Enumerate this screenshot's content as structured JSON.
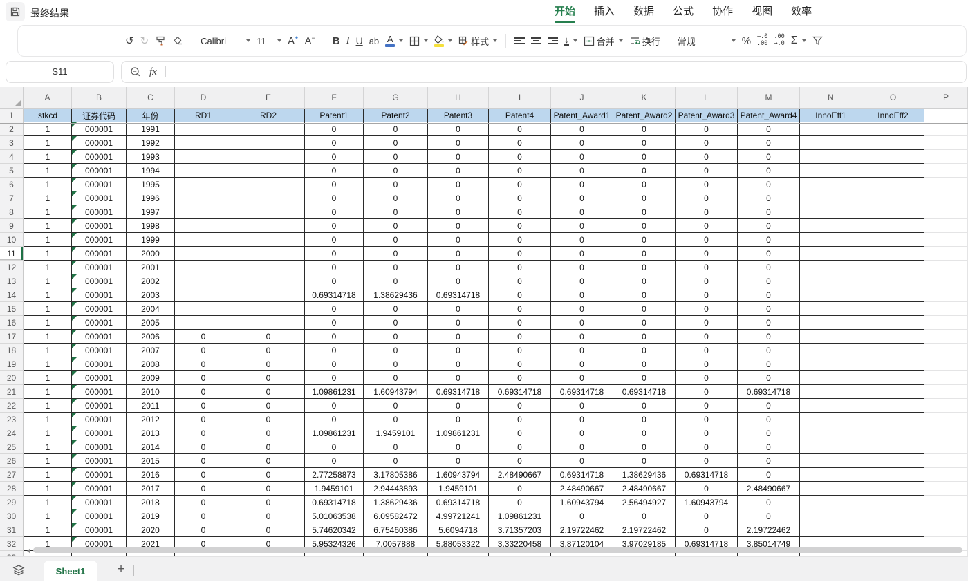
{
  "window": {
    "title": "最终结果"
  },
  "menu": {
    "tabs": [
      {
        "label": "开始",
        "active": true
      },
      {
        "label": "插入",
        "active": false
      },
      {
        "label": "数据",
        "active": false
      },
      {
        "label": "公式",
        "active": false
      },
      {
        "label": "协作",
        "active": false
      },
      {
        "label": "视图",
        "active": false
      },
      {
        "label": "效率",
        "active": false
      }
    ]
  },
  "toolbar": {
    "font_name": "Calibri",
    "font_size": "11",
    "bold_label": "B",
    "italic_label": "I",
    "underline_label": "U",
    "strike_label": "ab",
    "font_grow_label": "A",
    "font_shrink_label": "A",
    "font_color_label": "A",
    "style_label": "样式",
    "valign_glyph": "↓",
    "merge_label": "合并",
    "wrap_label": "换行",
    "number_format": "常规",
    "percent_label": "%",
    "dec_decrease_top": "←.0",
    "dec_decrease_bottom": ".00",
    "dec_increase_top": ".00",
    "dec_increase_bottom": "→.0",
    "sum_label": "Σ",
    "undo_glyph": "↺",
    "redo_glyph": "↻"
  },
  "formula_bar": {
    "name_box": "S11",
    "fx_label": "fx"
  },
  "grid": {
    "column_letters": [
      "A",
      "B",
      "C",
      "D",
      "E",
      "F",
      "G",
      "H",
      "I",
      "J",
      "K",
      "L",
      "M",
      "N",
      "O",
      "P"
    ],
    "selected_row": "11",
    "partial_row_num": "33",
    "header_row": {
      "row_num": "1",
      "cells": [
        "stkcd",
        "证券代码",
        "年份",
        "RD1",
        "RD2",
        "Patent1",
        "Patent2",
        "Patent3",
        "Patent4",
        "Patent_Award1",
        "Patent_Award2",
        "Patent_Award3",
        "Patent_Award4",
        "InnoEff1",
        "InnoEff2"
      ]
    },
    "rows": [
      {
        "row_num": "2",
        "cells": [
          "1",
          "000001",
          "1991",
          "",
          "",
          "0",
          "0",
          "0",
          "0",
          "0",
          "0",
          "0",
          "0",
          "",
          ""
        ]
      },
      {
        "row_num": "3",
        "cells": [
          "1",
          "000001",
          "1992",
          "",
          "",
          "0",
          "0",
          "0",
          "0",
          "0",
          "0",
          "0",
          "0",
          "",
          ""
        ]
      },
      {
        "row_num": "4",
        "cells": [
          "1",
          "000001",
          "1993",
          "",
          "",
          "0",
          "0",
          "0",
          "0",
          "0",
          "0",
          "0",
          "0",
          "",
          ""
        ]
      },
      {
        "row_num": "5",
        "cells": [
          "1",
          "000001",
          "1994",
          "",
          "",
          "0",
          "0",
          "0",
          "0",
          "0",
          "0",
          "0",
          "0",
          "",
          ""
        ]
      },
      {
        "row_num": "6",
        "cells": [
          "1",
          "000001",
          "1995",
          "",
          "",
          "0",
          "0",
          "0",
          "0",
          "0",
          "0",
          "0",
          "0",
          "",
          ""
        ]
      },
      {
        "row_num": "7",
        "cells": [
          "1",
          "000001",
          "1996",
          "",
          "",
          "0",
          "0",
          "0",
          "0",
          "0",
          "0",
          "0",
          "0",
          "",
          ""
        ]
      },
      {
        "row_num": "8",
        "cells": [
          "1",
          "000001",
          "1997",
          "",
          "",
          "0",
          "0",
          "0",
          "0",
          "0",
          "0",
          "0",
          "0",
          "",
          ""
        ]
      },
      {
        "row_num": "9",
        "cells": [
          "1",
          "000001",
          "1998",
          "",
          "",
          "0",
          "0",
          "0",
          "0",
          "0",
          "0",
          "0",
          "0",
          "",
          ""
        ]
      },
      {
        "row_num": "10",
        "cells": [
          "1",
          "000001",
          "1999",
          "",
          "",
          "0",
          "0",
          "0",
          "0",
          "0",
          "0",
          "0",
          "0",
          "",
          ""
        ]
      },
      {
        "row_num": "11",
        "cells": [
          "1",
          "000001",
          "2000",
          "",
          "",
          "0",
          "0",
          "0",
          "0",
          "0",
          "0",
          "0",
          "0",
          "",
          ""
        ]
      },
      {
        "row_num": "12",
        "cells": [
          "1",
          "000001",
          "2001",
          "",
          "",
          "0",
          "0",
          "0",
          "0",
          "0",
          "0",
          "0",
          "0",
          "",
          ""
        ]
      },
      {
        "row_num": "13",
        "cells": [
          "1",
          "000001",
          "2002",
          "",
          "",
          "0",
          "0",
          "0",
          "0",
          "0",
          "0",
          "0",
          "0",
          "",
          ""
        ]
      },
      {
        "row_num": "14",
        "cells": [
          "1",
          "000001",
          "2003",
          "",
          "",
          "0.69314718",
          "1.38629436",
          "0.69314718",
          "0",
          "0",
          "0",
          "0",
          "0",
          "",
          ""
        ]
      },
      {
        "row_num": "15",
        "cells": [
          "1",
          "000001",
          "2004",
          "",
          "",
          "0",
          "0",
          "0",
          "0",
          "0",
          "0",
          "0",
          "0",
          "",
          ""
        ]
      },
      {
        "row_num": "16",
        "cells": [
          "1",
          "000001",
          "2005",
          "",
          "",
          "0",
          "0",
          "0",
          "0",
          "0",
          "0",
          "0",
          "0",
          "",
          ""
        ]
      },
      {
        "row_num": "17",
        "cells": [
          "1",
          "000001",
          "2006",
          "0",
          "0",
          "0",
          "0",
          "0",
          "0",
          "0",
          "0",
          "0",
          "0",
          "",
          ""
        ]
      },
      {
        "row_num": "18",
        "cells": [
          "1",
          "000001",
          "2007",
          "0",
          "0",
          "0",
          "0",
          "0",
          "0",
          "0",
          "0",
          "0",
          "0",
          "",
          ""
        ]
      },
      {
        "row_num": "19",
        "cells": [
          "1",
          "000001",
          "2008",
          "0",
          "0",
          "0",
          "0",
          "0",
          "0",
          "0",
          "0",
          "0",
          "0",
          "",
          ""
        ]
      },
      {
        "row_num": "20",
        "cells": [
          "1",
          "000001",
          "2009",
          "0",
          "0",
          "0",
          "0",
          "0",
          "0",
          "0",
          "0",
          "0",
          "0",
          "",
          ""
        ]
      },
      {
        "row_num": "21",
        "cells": [
          "1",
          "000001",
          "2010",
          "0",
          "0",
          "1.09861231",
          "1.60943794",
          "0.69314718",
          "0.69314718",
          "0.69314718",
          "0.69314718",
          "0",
          "0.69314718",
          "",
          ""
        ]
      },
      {
        "row_num": "22",
        "cells": [
          "1",
          "000001",
          "2011",
          "0",
          "0",
          "0",
          "0",
          "0",
          "0",
          "0",
          "0",
          "0",
          "0",
          "",
          ""
        ]
      },
      {
        "row_num": "23",
        "cells": [
          "1",
          "000001",
          "2012",
          "0",
          "0",
          "0",
          "0",
          "0",
          "0",
          "0",
          "0",
          "0",
          "0",
          "",
          ""
        ]
      },
      {
        "row_num": "24",
        "cells": [
          "1",
          "000001",
          "2013",
          "0",
          "0",
          "1.09861231",
          "1.9459101",
          "1.09861231",
          "0",
          "0",
          "0",
          "0",
          "0",
          "",
          ""
        ]
      },
      {
        "row_num": "25",
        "cells": [
          "1",
          "000001",
          "2014",
          "0",
          "0",
          "0",
          "0",
          "0",
          "0",
          "0",
          "0",
          "0",
          "0",
          "",
          ""
        ]
      },
      {
        "row_num": "26",
        "cells": [
          "1",
          "000001",
          "2015",
          "0",
          "0",
          "0",
          "0",
          "0",
          "0",
          "0",
          "0",
          "0",
          "0",
          "",
          ""
        ]
      },
      {
        "row_num": "27",
        "cells": [
          "1",
          "000001",
          "2016",
          "0",
          "0",
          "2.77258873",
          "3.17805386",
          "1.60943794",
          "2.48490667",
          "0.69314718",
          "1.38629436",
          "0.69314718",
          "0",
          "",
          ""
        ]
      },
      {
        "row_num": "28",
        "cells": [
          "1",
          "000001",
          "2017",
          "0",
          "0",
          "1.9459101",
          "2.94443893",
          "1.9459101",
          "0",
          "2.48490667",
          "2.48490667",
          "0",
          "2.48490667",
          "",
          ""
        ]
      },
      {
        "row_num": "29",
        "cells": [
          "1",
          "000001",
          "2018",
          "0",
          "0",
          "0.69314718",
          "1.38629436",
          "0.69314718",
          "0",
          "1.60943794",
          "2.56494927",
          "1.60943794",
          "0",
          "",
          ""
        ]
      },
      {
        "row_num": "30",
        "cells": [
          "1",
          "000001",
          "2019",
          "0",
          "0",
          "5.01063538",
          "6.09582472",
          "4.99721241",
          "1.09861231",
          "0",
          "0",
          "0",
          "0",
          "",
          ""
        ]
      },
      {
        "row_num": "31",
        "cells": [
          "1",
          "000001",
          "2020",
          "0",
          "0",
          "5.74620342",
          "6.75460386",
          "5.6094718",
          "3.71357203",
          "2.19722462",
          "2.19722462",
          "0",
          "2.19722462",
          "",
          ""
        ]
      },
      {
        "row_num": "32",
        "cells": [
          "1",
          "000001",
          "2021",
          "0",
          "0",
          "5.95324326",
          "7.0057888",
          "5.88053322",
          "3.33220458",
          "3.87120104",
          "3.97029185",
          "0.69314718",
          "3.85014749",
          "",
          ""
        ]
      }
    ]
  },
  "sheet_bar": {
    "active_sheet": "Sheet1",
    "add_label": "+"
  },
  "colors": {
    "accent_green": "#217346",
    "table_header_fill": "#BDD7EE",
    "font_color_swatch": "#4472C4",
    "fill_color_swatch": "#F5E03B"
  }
}
